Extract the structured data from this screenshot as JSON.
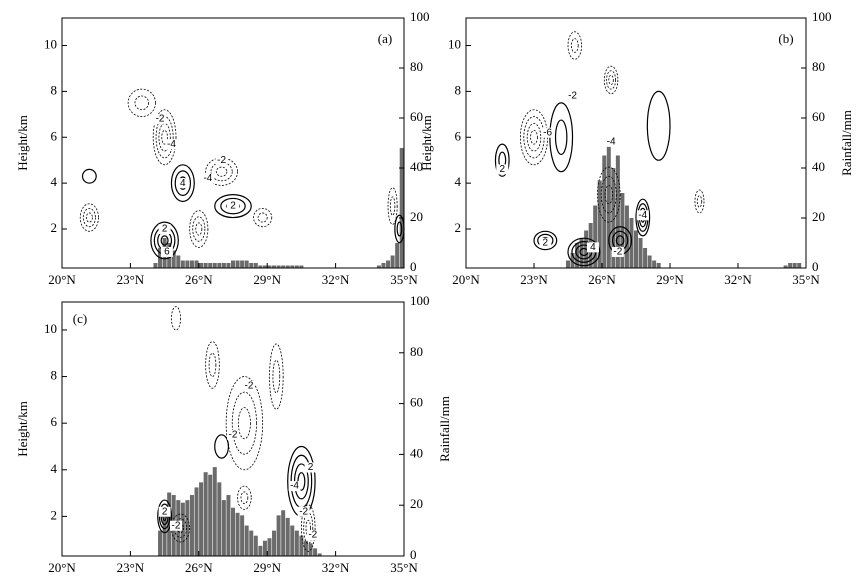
{
  "chart_data": [
    {
      "type": "bar",
      "panel_label": "(a)",
      "ylabel": "Height/km",
      "xlim": [
        20,
        35
      ],
      "xticks": [
        {
          "value": 20,
          "label": "20°N"
        },
        {
          "value": 23,
          "label": "23°N"
        },
        {
          "value": 26,
          "label": "26°N"
        },
        {
          "value": 29,
          "label": "29°N"
        },
        {
          "value": 32,
          "label": "32°N"
        },
        {
          "value": 35,
          "label": "35°N"
        }
      ],
      "ylim": [
        0.3,
        11.2
      ],
      "yticks": [
        2,
        4,
        6,
        8,
        10
      ],
      "y2lim": [
        0,
        100
      ],
      "y2ticks": [
        0,
        20,
        40,
        60,
        80,
        100
      ],
      "contour_labels": [
        "-2",
        "-4",
        "4",
        "2",
        "6",
        "-2",
        "2",
        "-4"
      ],
      "series": [
        {
          "axis": "y2",
          "color": "#6b6b6b",
          "x": [
            24.1,
            24.3,
            24.5,
            24.7,
            24.9,
            25.1,
            25.3,
            25.5,
            25.7,
            25.9,
            26.1,
            26.3,
            26.5,
            26.7,
            26.9,
            27.1,
            27.3,
            27.5,
            27.7,
            27.9,
            28.1,
            28.3,
            28.5,
            28.7,
            28.9,
            29.1,
            29.3,
            29.5,
            29.7,
            29.9,
            30.1,
            30.3,
            30.5,
            33.9,
            34.1,
            34.3,
            34.5,
            34.7,
            34.9
          ],
          "values": [
            2,
            8,
            12,
            10,
            7,
            5,
            3,
            3,
            3,
            3,
            2,
            2,
            2,
            2,
            2,
            2,
            2,
            3,
            3,
            3,
            3,
            2,
            2,
            1,
            1,
            1,
            1,
            1,
            1,
            1,
            1,
            1,
            1,
            1,
            2,
            3,
            5,
            10,
            48
          ]
        }
      ]
    },
    {
      "type": "bar",
      "panel_label": "(b)",
      "ylabel": "Height/km",
      "y2label": "Rainfall/mm",
      "xlim": [
        20,
        35
      ],
      "xticks": [
        {
          "value": 20,
          "label": "20°N"
        },
        {
          "value": 23,
          "label": "23°N"
        },
        {
          "value": 26,
          "label": "26°N"
        },
        {
          "value": 29,
          "label": "29°N"
        },
        {
          "value": 32,
          "label": "32°N"
        },
        {
          "value": 35,
          "label": "35°N"
        }
      ],
      "ylim": [
        0.3,
        11.2
      ],
      "yticks": [
        2,
        4,
        6,
        8,
        10
      ],
      "y2lim": [
        0,
        100
      ],
      "y2ticks": [
        0,
        20,
        40,
        60,
        80,
        100
      ],
      "contour_labels": [
        "-2",
        "-6",
        "-4",
        "2",
        "4",
        "2",
        "-2",
        "-4"
      ],
      "series": [
        {
          "axis": "y2",
          "color": "#6b6b6b",
          "x": [
            24.5,
            24.7,
            24.9,
            25.1,
            25.3,
            25.5,
            25.7,
            25.9,
            26.1,
            26.3,
            26.5,
            26.7,
            26.9,
            27.1,
            27.3,
            27.5,
            27.7,
            27.9,
            28.1,
            28.3,
            28.5,
            34.1,
            34.3,
            34.5,
            34.7
          ],
          "values": [
            3,
            6,
            10,
            12,
            15,
            18,
            25,
            35,
            45,
            50,
            40,
            45,
            30,
            25,
            20,
            15,
            12,
            8,
            5,
            3,
            2,
            1,
            2,
            2,
            2
          ]
        }
      ]
    },
    {
      "type": "bar",
      "panel_label": "(c)",
      "ylabel": "Height/km",
      "y2label": "Rainfall/mm",
      "xlim": [
        20,
        35
      ],
      "xticks": [
        {
          "value": 20,
          "label": "20°N"
        },
        {
          "value": 23,
          "label": "23°N"
        },
        {
          "value": 26,
          "label": "26°N"
        },
        {
          "value": 29,
          "label": "29°N"
        },
        {
          "value": 32,
          "label": "32°N"
        },
        {
          "value": 35,
          "label": "35°N"
        }
      ],
      "ylim": [
        0.3,
        11.2
      ],
      "yticks": [
        2,
        4,
        6,
        8,
        10
      ],
      "y2lim": [
        0,
        100
      ],
      "y2ticks": [
        0,
        20,
        40,
        60,
        80,
        100
      ],
      "contour_labels": [
        "-2",
        "2",
        "-2",
        "-2",
        "-4",
        "-2",
        "2",
        "-2"
      ],
      "series": [
        {
          "axis": "y2",
          "color": "#6b6b6b",
          "x": [
            24.3,
            24.5,
            24.7,
            24.9,
            25.1,
            25.3,
            25.5,
            25.7,
            25.9,
            26.1,
            26.3,
            26.5,
            26.7,
            26.9,
            27.1,
            27.3,
            27.5,
            27.7,
            27.9,
            28.1,
            28.3,
            28.5,
            28.7,
            28.9,
            29.1,
            29.3,
            29.5,
            29.7,
            29.9,
            30.1,
            30.3,
            30.5,
            30.7,
            30.9,
            31.1,
            31.3
          ],
          "values": [
            10,
            17,
            25,
            24,
            22,
            21,
            22,
            24,
            27,
            29,
            33,
            32,
            35,
            29,
            22,
            24,
            19,
            17,
            16,
            12,
            10,
            8,
            4,
            6,
            7,
            10,
            16,
            18,
            15,
            12,
            10,
            8,
            6,
            5,
            3,
            1
          ]
        }
      ]
    }
  ]
}
